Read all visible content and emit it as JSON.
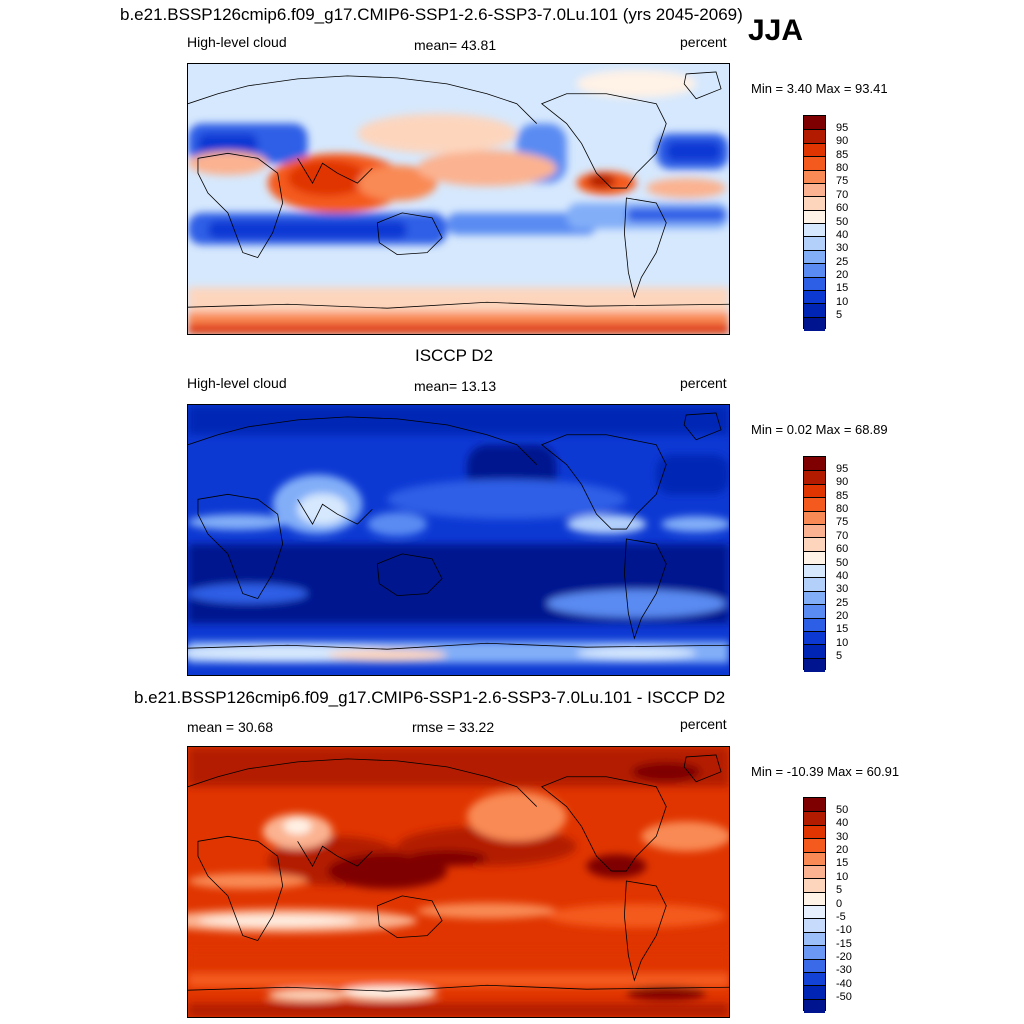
{
  "season": "JJA",
  "panels": [
    {
      "id": "model",
      "title": "b.e21.BSSP126cmip6.f09_g17.CMIP6-SSP1-2.6-SSP3-7.0Lu.101 (yrs 2045-2069)",
      "left_label": "High-level cloud",
      "center_label": "mean=  43.81",
      "right_label": "percent",
      "minmax": "Min =   3.40 Max =  93.41",
      "colorbar_labels": [
        "95",
        "90",
        "85",
        "80",
        "75",
        "70",
        "60",
        "50",
        "40",
        "30",
        "25",
        "20",
        "15",
        "10",
        "5"
      ],
      "colorbar_colors": [
        "#7f0000",
        "#b31b00",
        "#e03500",
        "#f45a1e",
        "#f98a55",
        "#fbb290",
        "#fdd5bd",
        "#fff2e6",
        "#d6e8fd",
        "#b3d0fb",
        "#82aef8",
        "#5a8bf2",
        "#2d5ee6",
        "#0d39d3",
        "#0025b5",
        "#00148f"
      ]
    },
    {
      "id": "obs",
      "title": "ISCCP D2",
      "left_label": "High-level cloud",
      "center_label": "mean=  13.13",
      "right_label": "percent",
      "minmax": "Min =   0.02 Max =  68.89",
      "colorbar_labels": [
        "95",
        "90",
        "85",
        "80",
        "75",
        "70",
        "60",
        "50",
        "40",
        "30",
        "25",
        "20",
        "15",
        "10",
        "5"
      ],
      "colorbar_colors": [
        "#7f0000",
        "#b31b00",
        "#e03500",
        "#f45a1e",
        "#f98a55",
        "#fbb290",
        "#fdd5bd",
        "#fff2e6",
        "#d6e8fd",
        "#b3d0fb",
        "#82aef8",
        "#5a8bf2",
        "#2d5ee6",
        "#0d39d3",
        "#0025b5",
        "#00148f"
      ]
    },
    {
      "id": "diff",
      "title": "b.e21.BSSP126cmip6.f09_g17.CMIP6-SSP1-2.6-SSP3-7.0Lu.101 - ISCCP D2",
      "left_label": "mean =  30.68",
      "center_label": "rmse =  33.22",
      "right_label": "percent",
      "minmax": "Min = -10.39 Max =  60.91",
      "colorbar_labels": [
        "50",
        "40",
        "30",
        "20",
        "15",
        "10",
        "5",
        "0",
        "-5",
        "-10",
        "-15",
        "-20",
        "-30",
        "-40",
        "-50"
      ],
      "colorbar_colors": [
        "#7f0000",
        "#b31b00",
        "#e03500",
        "#f45a1e",
        "#f98a55",
        "#fbb290",
        "#fdd5bd",
        "#fff2e6",
        "#e6f0fe",
        "#c7dcfc",
        "#9cbff9",
        "#6b98f4",
        "#3b6ae9",
        "#1242d6",
        "#0025b5",
        "#00148f"
      ]
    }
  ]
}
